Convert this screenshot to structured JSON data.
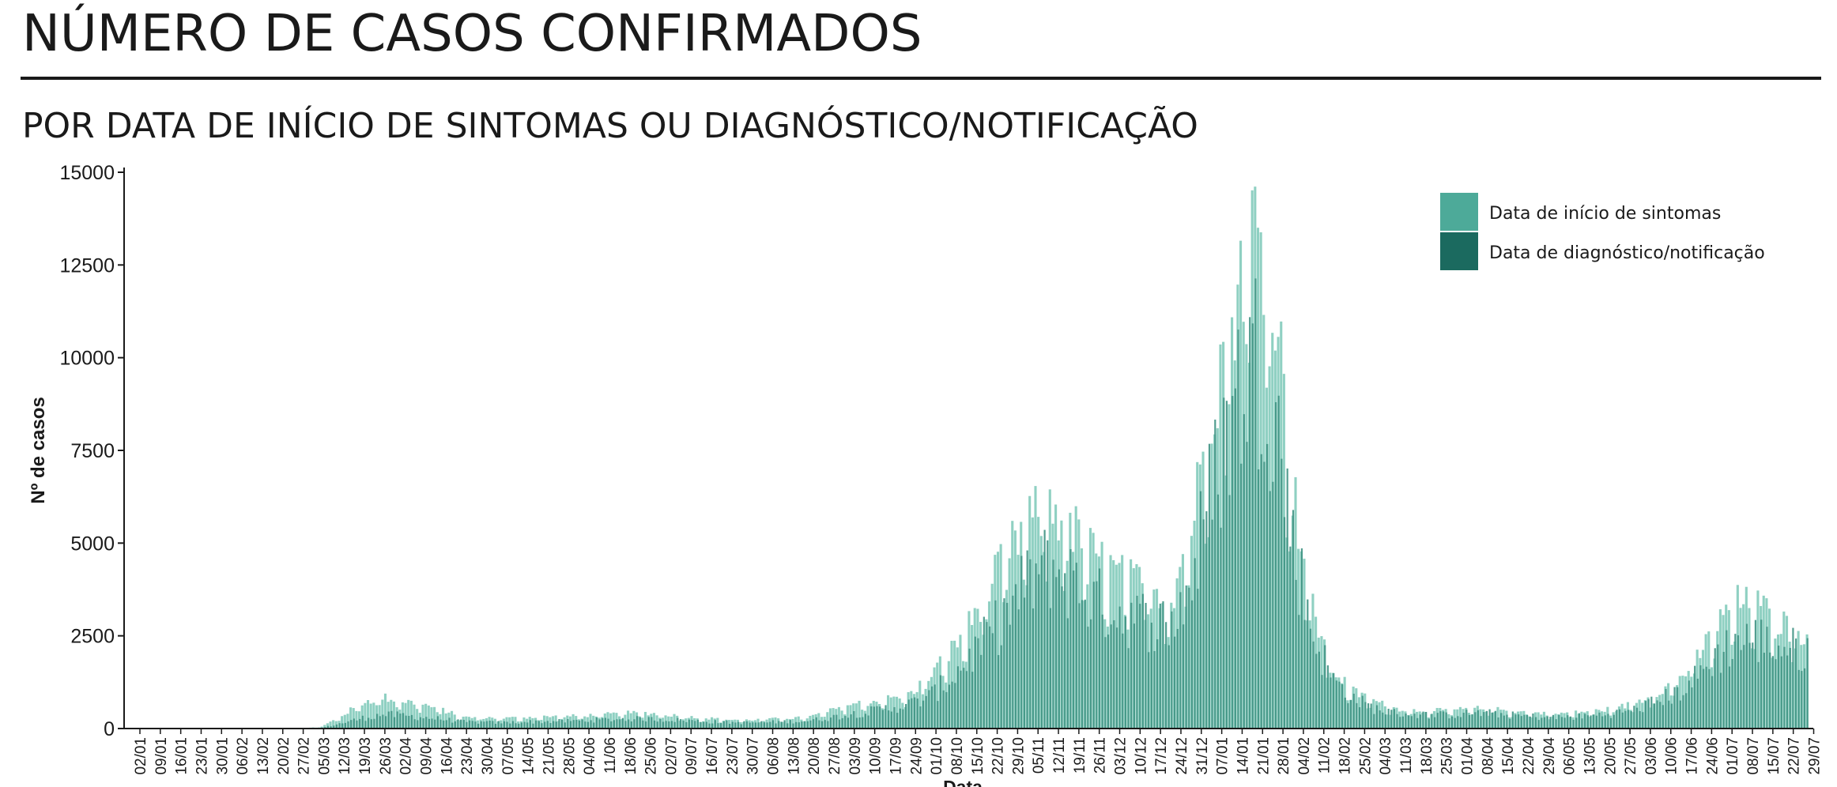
{
  "header": {
    "title": "NÚMERO DE CASOS CONFIRMADOS",
    "subtitle": "POR DATA DE INÍCIO DE SINTOMAS OU DIAGNÓSTICO/NOTIFICAÇÃO"
  },
  "colors": {
    "symptoms": "#4daa99",
    "diagnosis": "#1b6a5f",
    "symptoms_bar": "#8fd0c2",
    "diagnosis_bar": "#3f9283",
    "axis": "#1a1a1a"
  },
  "chart_data": {
    "type": "bar",
    "xlabel": "Data",
    "ylabel": "Nº de casos",
    "ylim": [
      0,
      15000
    ],
    "y_ticks": [
      "0",
      "2500",
      "5000",
      "7500",
      "10000",
      "12500",
      "15000"
    ],
    "x_tick_labels": [
      "02/01",
      "09/01",
      "16/01",
      "23/01",
      "30/01",
      "06/02",
      "13/02",
      "20/02",
      "27/02",
      "05/03",
      "12/03",
      "19/03",
      "26/03",
      "02/04",
      "09/04",
      "16/04",
      "23/04",
      "30/04",
      "07/05",
      "14/05",
      "21/05",
      "28/05",
      "04/06",
      "11/06",
      "18/06",
      "25/06",
      "02/07",
      "09/07",
      "16/07",
      "23/07",
      "30/07",
      "06/08",
      "13/08",
      "20/08",
      "27/08",
      "03/09",
      "10/09",
      "17/09",
      "24/09",
      "01/10",
      "08/10",
      "15/10",
      "22/10",
      "29/10",
      "05/11",
      "12/11",
      "19/11",
      "26/11",
      "03/12",
      "10/12",
      "17/12",
      "24/12",
      "31/12",
      "07/01",
      "14/01",
      "21/01",
      "28/01",
      "04/02",
      "11/02",
      "18/02",
      "25/02",
      "04/03",
      "11/03",
      "18/03",
      "25/03",
      "01/04",
      "08/04",
      "15/04",
      "22/04",
      "29/04",
      "06/05",
      "13/05",
      "20/05",
      "27/05",
      "03/06",
      "10/06",
      "17/06",
      "24/06",
      "01/07",
      "08/07",
      "15/07",
      "22/07",
      "29/07"
    ],
    "grid": false,
    "legend_position": "top-right",
    "series": [
      {
        "name": "Data de início de sintomas",
        "weekly_values": [
          0,
          0,
          0,
          0,
          0,
          0,
          0,
          0,
          0,
          50,
          350,
          700,
          850,
          750,
          650,
          500,
          300,
          300,
          280,
          300,
          320,
          330,
          350,
          380,
          420,
          420,
          380,
          320,
          280,
          250,
          230,
          250,
          280,
          300,
          450,
          650,
          700,
          800,
          900,
          1400,
          2000,
          2800,
          3800,
          4800,
          5600,
          6000,
          5500,
          4800,
          4300,
          4000,
          3800,
          3500,
          5500,
          8800,
          11200,
          13800,
          12500,
          6500,
          3200,
          1600,
          1000,
          750,
          550,
          500,
          480,
          500,
          540,
          520,
          460,
          420,
          400,
          430,
          480,
          550,
          700,
          1000,
          1250,
          1900,
          2800,
          3400,
          3300,
          2900,
          2600
        ]
      },
      {
        "name": "Data de diagnóstico/notificação",
        "weekly_values": [
          0,
          0,
          0,
          0,
          0,
          0,
          0,
          0,
          0,
          20,
          150,
          280,
          380,
          350,
          300,
          250,
          180,
          170,
          160,
          180,
          190,
          200,
          220,
          240,
          260,
          260,
          240,
          220,
          190,
          170,
          160,
          170,
          190,
          210,
          280,
          380,
          450,
          550,
          650,
          850,
          1300,
          1900,
          2500,
          3200,
          4000,
          4400,
          4000,
          3500,
          3200,
          3000,
          2900,
          2800,
          4000,
          6500,
          8500,
          10000,
          9000,
          5000,
          2500,
          1300,
          800,
          550,
          420,
          380,
          360,
          380,
          420,
          400,
          350,
          320,
          300,
          320,
          360,
          420,
          520,
          750,
          950,
          1400,
          2000,
          2400,
          2400,
          2200,
          2100
        ]
      }
    ]
  }
}
